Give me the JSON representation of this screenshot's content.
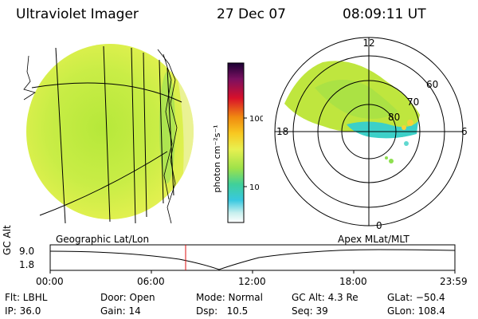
{
  "header": {
    "instrument": "Ultraviolet Imager",
    "date": "27 Dec 07",
    "time": "08:09:11 UT"
  },
  "colorbar": {
    "ticks": [
      "100",
      "10"
    ],
    "unit_label": "photon cm⁻²s⁻¹"
  },
  "polar_plot": {
    "mlt_labels": {
      "top": "12",
      "right": "6",
      "bottom": "0",
      "left": "18"
    },
    "lat_labels": [
      "60",
      "70",
      "80"
    ]
  },
  "altitude_panel": {
    "ylabel": "GC Alt",
    "ytick_top": "9.0",
    "ytick_bottom": "1.8",
    "left_caption": "Geographic Lat/Lon",
    "right_caption": "Apex MLat/MLT",
    "xticks": [
      "00:00",
      "06:00",
      "12:00",
      "18:00",
      "23:59"
    ],
    "current_time_marker": "08:09"
  },
  "status": {
    "flt": "Flt: LBHL",
    "ip": "IP: 36.0",
    "door": "Door: Open",
    "gain": "Gain: 14",
    "mode": "Mode: Normal",
    "dsp": "Dsp:   10.5",
    "gc_alt": "GC Alt: 4.3 Re",
    "seq": "Seq: 39",
    "glat": "GLat: −50.4",
    "glon": "GLon: 108.4"
  }
}
